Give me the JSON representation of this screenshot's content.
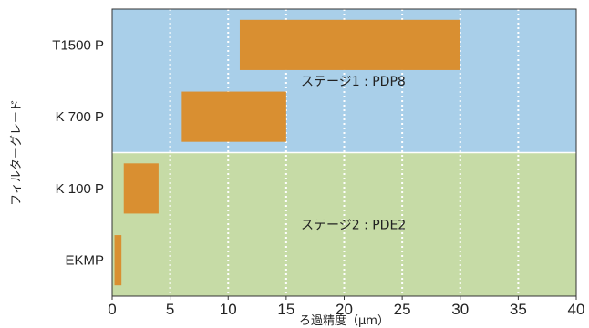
{
  "chart_data": {
    "type": "bar",
    "orientation": "horizontal-range",
    "xlabel": "ろ過精度（μm）",
    "ylabel": "フィルターグレード",
    "xlim": [
      0,
      40
    ],
    "xticks": [
      0,
      5,
      10,
      15,
      20,
      25,
      30,
      35,
      40
    ],
    "categories": [
      "T1500 P",
      "K 700 P",
      "K 100 P",
      "EKMP"
    ],
    "ranges": [
      {
        "category": "T1500 P",
        "min": 11,
        "max": 30
      },
      {
        "category": "K 700 P",
        "min": 6,
        "max": 15
      },
      {
        "category": "K 100 P",
        "min": 1,
        "max": 4
      },
      {
        "category": "EKMP",
        "min": 0.2,
        "max": 0.8
      }
    ],
    "stages": [
      {
        "label": "ステージ1 : PDP8",
        "categories": [
          "T1500 P",
          "K 700 P"
        ],
        "color": "#a9cfe9"
      },
      {
        "label": "ステージ2 : PDE2",
        "categories": [
          "K 100 P",
          "EKMP"
        ],
        "color": "#c6dba6"
      }
    ],
    "bar_color": "#d98f31",
    "grid": "vertical-dotted"
  }
}
